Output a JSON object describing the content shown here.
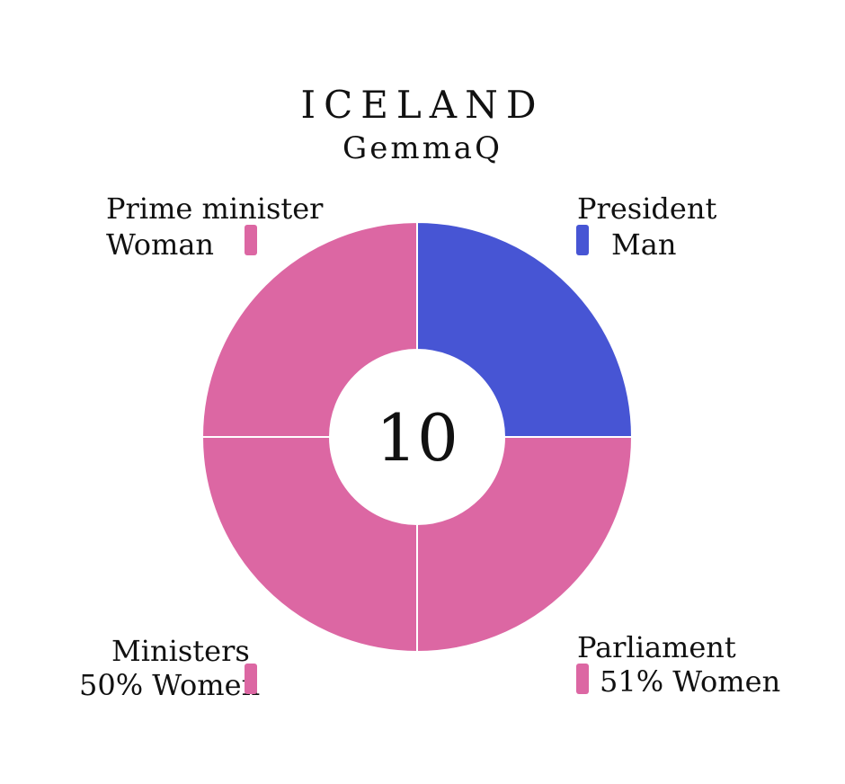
{
  "chart_data": {
    "type": "pie",
    "title": "ICELAND",
    "subtitle": "GemmaQ",
    "center_label": "10",
    "slices": [
      {
        "name": "President",
        "label": "Man",
        "value": 25,
        "color": "#4755d4"
      },
      {
        "name": "Parliament",
        "label": "51% Women",
        "value": 25,
        "color": "#dc67a3"
      },
      {
        "name": "Ministers",
        "label": "50% Women",
        "value": 25,
        "color": "#dc67a3"
      },
      {
        "name": "Prime minister",
        "label": "Woman",
        "value": 25,
        "color": "#dc67a3"
      }
    ]
  }
}
